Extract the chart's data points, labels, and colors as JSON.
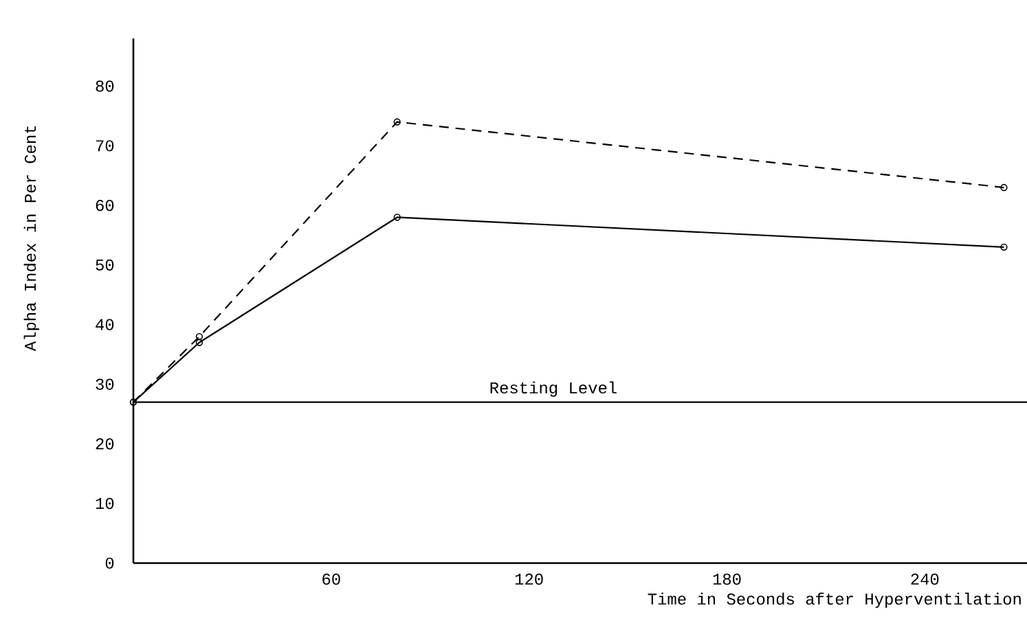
{
  "chart_data": {
    "type": "line",
    "xlabel": "Time in Seconds after Hyperventilation",
    "ylabel": "Alpha Index in Per Cent",
    "x": [
      0,
      20,
      80,
      264
    ],
    "series": [
      {
        "color": "#000000",
        "line_style": "dashed",
        "values": [
          27,
          38,
          74,
          63
        ]
      },
      {
        "color": "#000000",
        "line_style": "solid",
        "values": [
          27,
          37,
          58,
          53
        ]
      }
    ],
    "xlim": [
      0,
      271
    ],
    "xticks": [
      60,
      120,
      180,
      240
    ],
    "ylim": [
      0,
      88
    ],
    "yticks": [
      0,
      10,
      20,
      30,
      40,
      50,
      60,
      70,
      80
    ],
    "ref_lines": [
      {
        "axis": "y",
        "value": 27,
        "label": "Resting Level",
        "color": "#000000"
      }
    ],
    "marker": "circle"
  }
}
